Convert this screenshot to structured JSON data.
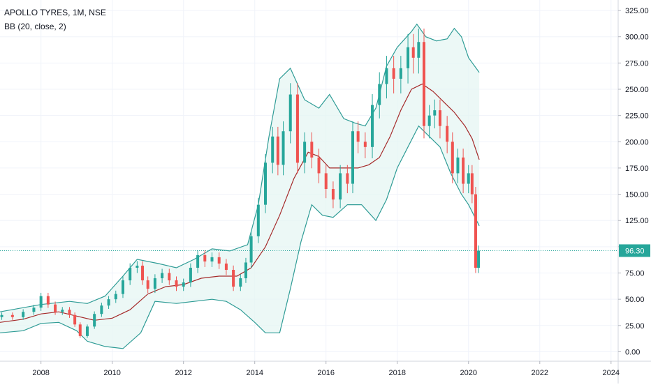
{
  "header": {
    "title": "APOLLO TYRES, 1M, NSE",
    "indicator": "BB (20, close, 2)"
  },
  "price_label": "96.30",
  "colors": {
    "up": "#26a69a",
    "down": "#ef5350",
    "band": "#2f9c96",
    "band_fill": "#e6f5f3",
    "basis": "#a52a2a",
    "price_line": "#26a69a",
    "axis_text": "#131722",
    "grid": "#f0f3fa"
  },
  "chart_data": {
    "type": "candlestick",
    "title": "APOLLO TYRES, 1M, NSE",
    "indicator": "BB (20, close, 2)",
    "y_ticks": [
      "325.00",
      "300.00",
      "275.00",
      "250.00",
      "225.00",
      "200.00",
      "175.00",
      "150.00",
      "125.00",
      "100.00",
      "75.00",
      "50.00",
      "25.00",
      "0.00"
    ],
    "y_tick_values": [
      325,
      300,
      275,
      250,
      225,
      200,
      175,
      150,
      125,
      100,
      75,
      50,
      25,
      0
    ],
    "ylim": [
      -9,
      335
    ],
    "x_ticks": [
      "2008",
      "2010",
      "2012",
      "2014",
      "2016",
      "2018",
      "2020",
      "2022",
      "2024"
    ],
    "x_tick_values": [
      2008,
      2010,
      2012,
      2014,
      2016,
      2018,
      2020,
      2022,
      2024
    ],
    "xlim": [
      2006.85,
      2024.2
    ],
    "last_price": 96.3,
    "closes": [
      [
        2006.9,
        35
      ],
      [
        2007.2,
        33
      ],
      [
        2007.5,
        38
      ],
      [
        2007.8,
        42
      ],
      [
        2008.0,
        53
      ],
      [
        2008.2,
        45
      ],
      [
        2008.4,
        38
      ],
      [
        2008.6,
        40
      ],
      [
        2008.8,
        35
      ],
      [
        2008.95,
        26
      ],
      [
        2009.1,
        15
      ],
      [
        2009.3,
        24
      ],
      [
        2009.5,
        36
      ],
      [
        2009.7,
        44
      ],
      [
        2009.9,
        50
      ],
      [
        2010.1,
        55
      ],
      [
        2010.3,
        68
      ],
      [
        2010.5,
        80
      ],
      [
        2010.7,
        82
      ],
      [
        2010.85,
        68
      ],
      [
        2011.0,
        60
      ],
      [
        2011.2,
        70
      ],
      [
        2011.4,
        75
      ],
      [
        2011.6,
        68
      ],
      [
        2011.8,
        62
      ],
      [
        2012.0,
        66
      ],
      [
        2012.2,
        80
      ],
      [
        2012.4,
        92
      ],
      [
        2012.6,
        86
      ],
      [
        2012.8,
        90
      ],
      [
        2013.0,
        84
      ],
      [
        2013.2,
        78
      ],
      [
        2013.4,
        62
      ],
      [
        2013.6,
        70
      ],
      [
        2013.75,
        85
      ],
      [
        2013.9,
        110
      ],
      [
        2014.1,
        140
      ],
      [
        2014.3,
        180
      ],
      [
        2014.5,
        205
      ],
      [
        2014.65,
        178
      ],
      [
        2014.8,
        210
      ],
      [
        2015.0,
        245
      ],
      [
        2015.2,
        180
      ],
      [
        2015.4,
        200
      ],
      [
        2015.6,
        185
      ],
      [
        2015.8,
        170
      ],
      [
        2016.0,
        155
      ],
      [
        2016.2,
        145
      ],
      [
        2016.4,
        170
      ],
      [
        2016.6,
        160
      ],
      [
        2016.75,
        210
      ],
      [
        2016.9,
        200
      ],
      [
        2017.1,
        195
      ],
      [
        2017.3,
        235
      ],
      [
        2017.5,
        255
      ],
      [
        2017.7,
        270
      ],
      [
        2017.9,
        260
      ],
      [
        2018.1,
        270
      ],
      [
        2018.3,
        290
      ],
      [
        2018.45,
        280
      ],
      [
        2018.6,
        295
      ],
      [
        2018.75,
        215
      ],
      [
        2018.9,
        225
      ],
      [
        2019.05,
        230
      ],
      [
        2019.2,
        215
      ],
      [
        2019.4,
        200
      ],
      [
        2019.55,
        170
      ],
      [
        2019.7,
        185
      ],
      [
        2019.85,
        160
      ],
      [
        2020.0,
        170
      ],
      [
        2020.1,
        150
      ],
      [
        2020.2,
        80
      ],
      [
        2020.28,
        96.3
      ]
    ],
    "bb_upper": [
      [
        2006.85,
        38
      ],
      [
        2008.0,
        45
      ],
      [
        2008.8,
        48
      ],
      [
        2009.3,
        46
      ],
      [
        2009.8,
        53
      ],
      [
        2010.3,
        72
      ],
      [
        2010.7,
        88
      ],
      [
        2011.3,
        84
      ],
      [
        2011.8,
        80
      ],
      [
        2012.3,
        88
      ],
      [
        2012.8,
        98
      ],
      [
        2013.3,
        96
      ],
      [
        2013.8,
        102
      ],
      [
        2014.1,
        140
      ],
      [
        2014.4,
        205
      ],
      [
        2014.7,
        260
      ],
      [
        2015.0,
        270
      ],
      [
        2015.4,
        240
      ],
      [
        2015.8,
        232
      ],
      [
        2016.1,
        245
      ],
      [
        2016.5,
        222
      ],
      [
        2016.8,
        218
      ],
      [
        2017.1,
        215
      ],
      [
        2017.4,
        232
      ],
      [
        2017.7,
        272
      ],
      [
        2018.0,
        290
      ],
      [
        2018.4,
        305
      ],
      [
        2018.55,
        312
      ],
      [
        2018.8,
        300
      ],
      [
        2019.1,
        296
      ],
      [
        2019.4,
        298
      ],
      [
        2019.6,
        308
      ],
      [
        2019.8,
        300
      ],
      [
        2020.0,
        280
      ],
      [
        2020.3,
        266
      ]
    ],
    "bb_basis": [
      [
        2006.85,
        28
      ],
      [
        2007.5,
        31
      ],
      [
        2008.0,
        36
      ],
      [
        2008.5,
        38
      ],
      [
        2009.0,
        34
      ],
      [
        2009.5,
        30
      ],
      [
        2010.0,
        32
      ],
      [
        2010.5,
        40
      ],
      [
        2011.0,
        55
      ],
      [
        2011.5,
        62
      ],
      [
        2012.0,
        64
      ],
      [
        2012.5,
        70
      ],
      [
        2013.0,
        72
      ],
      [
        2013.5,
        72
      ],
      [
        2013.9,
        80
      ],
      [
        2014.3,
        100
      ],
      [
        2014.7,
        130
      ],
      [
        2015.1,
        165
      ],
      [
        2015.5,
        190
      ],
      [
        2015.8,
        186
      ],
      [
        2016.1,
        175
      ],
      [
        2016.5,
        175
      ],
      [
        2016.9,
        175
      ],
      [
        2017.2,
        178
      ],
      [
        2017.5,
        185
      ],
      [
        2017.8,
        205
      ],
      [
        2018.1,
        230
      ],
      [
        2018.4,
        250
      ],
      [
        2018.7,
        255
      ],
      [
        2019.0,
        248
      ],
      [
        2019.3,
        238
      ],
      [
        2019.6,
        228
      ],
      [
        2019.9,
        215
      ],
      [
        2020.1,
        203
      ],
      [
        2020.3,
        183
      ]
    ],
    "bb_lower": [
      [
        2006.85,
        18
      ],
      [
        2007.5,
        20
      ],
      [
        2008.0,
        27
      ],
      [
        2008.5,
        28
      ],
      [
        2009.0,
        20
      ],
      [
        2009.3,
        10
      ],
      [
        2009.8,
        5
      ],
      [
        2010.3,
        3
      ],
      [
        2010.8,
        18
      ],
      [
        2011.2,
        48
      ],
      [
        2011.8,
        46
      ],
      [
        2012.3,
        48
      ],
      [
        2012.8,
        50
      ],
      [
        2013.2,
        48
      ],
      [
        2013.6,
        40
      ],
      [
        2014.0,
        28
      ],
      [
        2014.3,
        18
      ],
      [
        2014.7,
        18
      ],
      [
        2015.0,
        60
      ],
      [
        2015.3,
        105
      ],
      [
        2015.6,
        140
      ],
      [
        2015.9,
        130
      ],
      [
        2016.2,
        128
      ],
      [
        2016.6,
        140
      ],
      [
        2017.0,
        140
      ],
      [
        2017.4,
        125
      ],
      [
        2017.7,
        145
      ],
      [
        2018.0,
        175
      ],
      [
        2018.3,
        195
      ],
      [
        2018.6,
        215
      ],
      [
        2018.9,
        205
      ],
      [
        2019.2,
        195
      ],
      [
        2019.5,
        170
      ],
      [
        2019.8,
        150
      ],
      [
        2020.0,
        140
      ],
      [
        2020.3,
        120
      ]
    ]
  }
}
